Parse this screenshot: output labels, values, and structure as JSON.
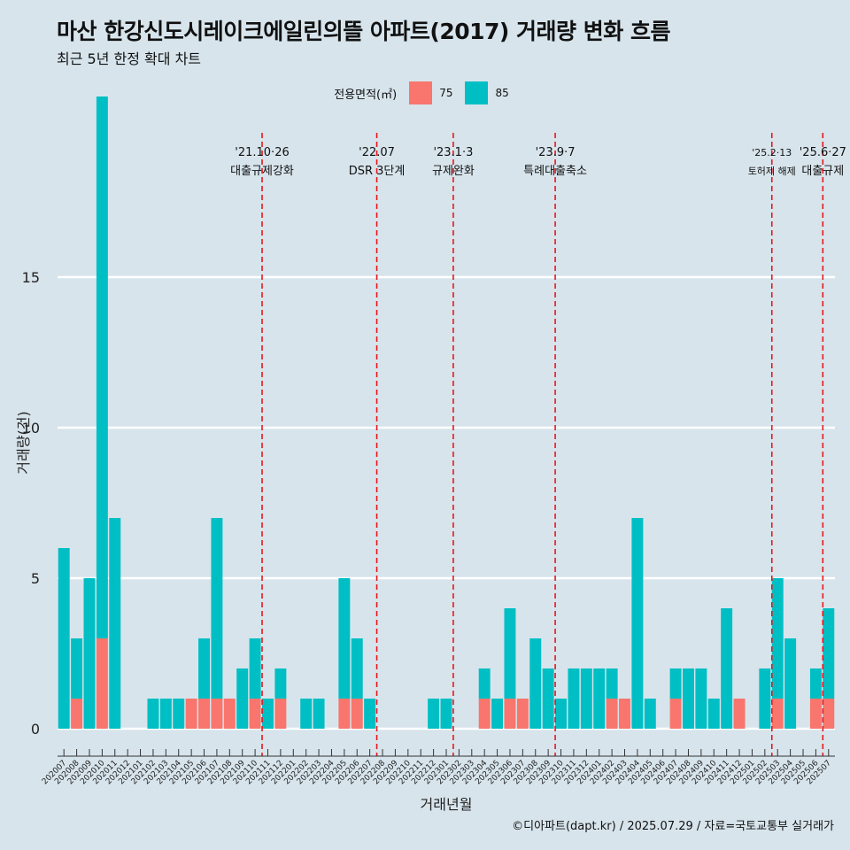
{
  "header": {
    "title": "마산 한강신도시레이크에일린의뜰 아파트(2017) 거래량 변화 흐름",
    "subtitle": "최근 5년 한정 확대 차트"
  },
  "caption": "©디아파트(dapt.kr) / 2025.07.29 / 자료=국토교통부 실거래가",
  "legend": {
    "title": "전용면적(㎡)",
    "items": [
      {
        "label": "75",
        "color": "#f8766d"
      },
      {
        "label": "85",
        "color": "#00bfc4"
      }
    ]
  },
  "chart_data": {
    "type": "bar",
    "stacked": true,
    "xlabel": "거래년월",
    "ylabel": "거래량(건)",
    "ylim": [
      0,
      18.9
    ],
    "yticks": [
      0,
      5,
      10,
      15
    ],
    "grid": true,
    "legend_position": "top",
    "categories": [
      "202007",
      "202008",
      "202009",
      "202010",
      "202011",
      "202012",
      "202101",
      "202102",
      "202103",
      "202104",
      "202105",
      "202106",
      "202107",
      "202108",
      "202109",
      "202110",
      "202111",
      "202112",
      "202201",
      "202202",
      "202203",
      "202204",
      "202205",
      "202206",
      "202207",
      "202208",
      "202209",
      "202210",
      "202211",
      "202212",
      "202301",
      "202302",
      "202303",
      "202304",
      "202305",
      "202306",
      "202307",
      "202308",
      "202309",
      "202310",
      "202311",
      "202312",
      "202401",
      "202402",
      "202403",
      "202404",
      "202405",
      "202406",
      "202407",
      "202408",
      "202409",
      "202410",
      "202411",
      "202412",
      "202501",
      "202502",
      "202503",
      "202504",
      "202505",
      "202506",
      "202507"
    ],
    "series": [
      {
        "name": "75",
        "color": "#f8766d",
        "values": [
          0,
          1,
          0,
          3,
          0,
          0,
          0,
          0,
          0,
          0,
          1,
          1,
          1,
          1,
          0,
          1,
          0,
          1,
          0,
          0,
          0,
          0,
          1,
          1,
          0,
          0,
          0,
          0,
          0,
          0,
          0,
          0,
          0,
          1,
          0,
          1,
          1,
          0,
          0,
          0,
          0,
          0,
          0,
          1,
          1,
          0,
          0,
          0,
          1,
          0,
          0,
          0,
          0,
          1,
          0,
          0,
          1,
          0,
          0,
          1,
          1
        ]
      },
      {
        "name": "85",
        "color": "#00bfc4",
        "values": [
          6,
          2,
          5,
          18,
          7,
          0,
          0,
          1,
          1,
          1,
          0,
          2,
          6,
          0,
          2,
          2,
          1,
          1,
          0,
          1,
          1,
          0,
          4,
          2,
          1,
          0,
          0,
          0,
          0,
          1,
          1,
          0,
          0,
          1,
          1,
          3,
          0,
          3,
          2,
          1,
          2,
          2,
          2,
          1,
          0,
          7,
          1,
          0,
          1,
          2,
          2,
          1,
          4,
          0,
          0,
          2,
          4,
          3,
          0,
          1,
          3
        ]
      }
    ],
    "events": [
      {
        "after": "202110",
        "date": "'21.10·26",
        "label": "대출규제강화"
      },
      {
        "after": "202207",
        "date": "'22.07",
        "label": "DSR 3단계"
      },
      {
        "after": "202301",
        "date": "'23.1·3",
        "label": "규제완화"
      },
      {
        "after": "202309",
        "date": "'23.9·7",
        "label": "특례대출축소"
      },
      {
        "after": "202502",
        "date": "'25.2·13",
        "label": "토허제 해제"
      },
      {
        "after": "202506",
        "date": "'25.6·27",
        "label": "대출규제"
      }
    ]
  }
}
